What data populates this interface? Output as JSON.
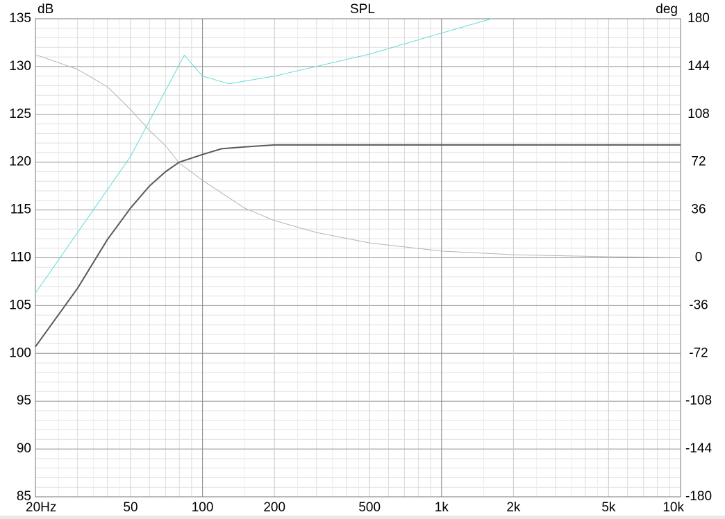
{
  "chart_data": {
    "type": "line",
    "title": "SPL",
    "ylabel": "dB",
    "y2label": "deg",
    "xscale": "log",
    "grid": true,
    "xlim": [
      20,
      10000
    ],
    "xticks": [
      {
        "value": 20,
        "label": "20Hz"
      },
      50,
      100,
      200,
      500,
      {
        "value": 1000,
        "label": "1k"
      },
      {
        "value": 2000,
        "label": "2k"
      },
      {
        "value": 5000,
        "label": "5k"
      },
      {
        "value": 10000,
        "label": "10k"
      }
    ],
    "ylim": [
      85,
      135
    ],
    "yticks": [
      85,
      90,
      95,
      100,
      105,
      110,
      115,
      120,
      125,
      130,
      135
    ],
    "y2lim": [
      -180,
      180
    ],
    "y2ticks": [
      -180,
      -144,
      -108,
      -72,
      -36,
      0,
      36,
      72,
      108,
      144,
      180
    ],
    "series": [
      {
        "color": "#5fdcd8",
        "width": 1,
        "x": [
          20,
          50,
          84,
          100,
          129,
          200,
          500,
          1000,
          1620
        ],
        "values": [
          106.3,
          120.6,
          131.2,
          129,
          128.2,
          129,
          131.3,
          133.5,
          135
        ]
      },
      {
        "color": "#b4b4b4",
        "width": 1,
        "axis": "y2",
        "x": [
          20,
          30,
          40,
          50,
          60,
          70,
          80,
          100,
          150,
          200,
          300,
          500,
          1000,
          2000,
          5000,
          10000
        ],
        "values": [
          153,
          141.9,
          128.8,
          111.6,
          95.9,
          84.4,
          71.3,
          58.3,
          37.4,
          28,
          19,
          11.2,
          5,
          2.3,
          0.8,
          0
        ]
      },
      {
        "color": "#595959",
        "width": 2,
        "x": [
          20,
          30,
          40,
          50,
          60,
          70,
          80,
          100,
          120,
          150,
          200,
          500,
          1000,
          10000
        ],
        "values": [
          100.7,
          106.8,
          111.9,
          115.2,
          117.5,
          119,
          120,
          120.8,
          121.4,
          121.6,
          121.8,
          121.8,
          121.8,
          121.8
        ]
      }
    ]
  }
}
